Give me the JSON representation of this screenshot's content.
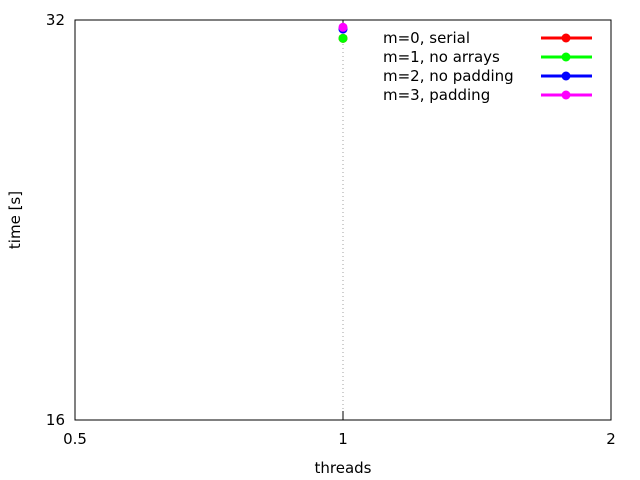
{
  "chart_data": {
    "type": "line",
    "title": "",
    "xlabel": "threads",
    "ylabel": "time [s]",
    "x_scale": "log2",
    "y_scale": "log2",
    "xlim": [
      0.5,
      2
    ],
    "ylim": [
      16,
      32
    ],
    "x_ticks": [
      0.5,
      1,
      2
    ],
    "x_tick_labels": [
      "0.5",
      "1",
      "2"
    ],
    "y_ticks": [
      16,
      32
    ],
    "y_tick_labels": [
      "16",
      "32"
    ],
    "grid": "vertical dotted lines at x ticks",
    "legend_position": "top-right",
    "series": [
      {
        "name": "m=0, serial",
        "color": "#ff0000",
        "x": [
          1
        ],
        "y": [
          31.0
        ]
      },
      {
        "name": "m=1, no arrays",
        "color": "#00ff00",
        "x": [
          1
        ],
        "y": [
          31.0
        ]
      },
      {
        "name": "m=2, no padding",
        "color": "#0000ff",
        "x": [
          1
        ],
        "y": [
          31.5
        ]
      },
      {
        "name": "m=3, padding",
        "color": "#ff00ff",
        "x": [
          1
        ],
        "y": [
          31.6
        ]
      }
    ]
  }
}
